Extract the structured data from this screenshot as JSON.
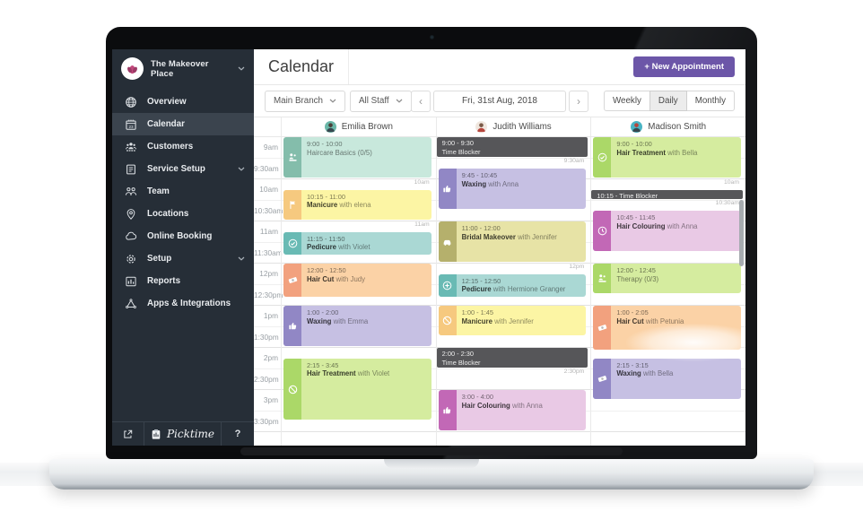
{
  "app": {
    "brand": {
      "name": "The Makeover Place"
    },
    "sidebar": {
      "items": [
        {
          "label": "Overview",
          "icon": "globe"
        },
        {
          "label": "Calendar",
          "icon": "calendar",
          "active": true
        },
        {
          "label": "Customers",
          "icon": "customers"
        },
        {
          "label": "Service Setup",
          "icon": "services",
          "chevron": true
        },
        {
          "label": "Team",
          "icon": "team"
        },
        {
          "label": "Locations",
          "icon": "location"
        },
        {
          "label": "Online Booking",
          "icon": "cloud"
        },
        {
          "label": "Setup",
          "icon": "gear",
          "chevron": true
        },
        {
          "label": "Reports",
          "icon": "reports"
        },
        {
          "label": "Apps & Integrations",
          "icon": "apps"
        }
      ],
      "footer": {
        "logo": "Picktime",
        "help": "?"
      }
    },
    "header": {
      "title": "Calendar",
      "new_appointment": "+ New Appointment"
    },
    "toolbar": {
      "branch": "Main Branch",
      "staff_filter": "All Staff",
      "prev": "‹",
      "date": "Fri, 31st Aug, 2018",
      "next": "›",
      "views": [
        "Weekly",
        "Daily",
        "Monthly"
      ],
      "active_view": "Daily"
    },
    "times": [
      "9am",
      "9:30am",
      "10am",
      "10:30am",
      "11am",
      "11:30am",
      "12pm",
      "12:30pm",
      "1pm",
      "1:30pm",
      "2pm",
      "2:30pm",
      "3pm",
      "3:30pm"
    ],
    "palette": {
      "mint": {
        "bg": "#c8e8dc",
        "bar": "#84bdab"
      },
      "yellow": {
        "bg": "#fcf5a4",
        "bar": "#f6c97f"
      },
      "teal": {
        "bg": "#aad8d4",
        "bar": "#69bab4"
      },
      "orange": {
        "bg": "#fbd2a6",
        "bar": "#f2a17e"
      },
      "purple": {
        "bg": "#c6c0e3",
        "bar": "#9187c5"
      },
      "green": {
        "bg": "#d5ec9f",
        "bar": "#abd868"
      },
      "olive": {
        "bg": "#e7e3a6",
        "bar": "#b5b06c"
      },
      "pink": {
        "bg": "#e9c9e5",
        "bar": "#c268b6"
      },
      "blocker": "#565659",
      "accent": "#6c56a8"
    },
    "staff": [
      {
        "name": "Emilia Brown",
        "avatar": {
          "bg": "#6ab7a8",
          "head": "#4b3f38",
          "body": "#37474f"
        },
        "events": [
          {
            "start": "9:00",
            "end": "10:00",
            "time": "9:00 - 10:00",
            "title": "Haircare Basics (0/5)",
            "with": "",
            "icon": "group",
            "color": "mint",
            "kind": "class",
            "corner": "10am"
          },
          {
            "start": "10:15",
            "end": "11:00",
            "time": "10:15 - 11:00",
            "title": "Manicure",
            "with": "elena",
            "icon": "flag",
            "color": "yellow",
            "kind": "appt",
            "corner": "11am"
          },
          {
            "start": "11:15",
            "end": "11:50",
            "time": "11:15 - 11:50",
            "title": "Pedicure",
            "with": "Violet",
            "icon": "check",
            "color": "teal",
            "kind": "appt"
          },
          {
            "start": "12:00",
            "end": "12:50",
            "time": "12:00 - 12:50",
            "title": "Hair Cut",
            "with": "Judy",
            "icon": "money",
            "color": "orange",
            "kind": "appt"
          },
          {
            "start": "1:00",
            "end": "2:00",
            "time": "1:00 - 2:00",
            "title": "Waxing",
            "with": "Emma",
            "icon": "thumb",
            "color": "purple",
            "kind": "appt"
          },
          {
            "start": "2:15",
            "end": "3:45",
            "time": "2:15 - 3:45",
            "title": "Hair Treatment",
            "with": "Violet",
            "icon": "ban",
            "color": "green",
            "kind": "appt"
          }
        ]
      },
      {
        "name": "Judith Williams",
        "avatar": {
          "bg": "#f0e7df",
          "head": "#7a5a48",
          "body": "#b6453c"
        },
        "events": [
          {
            "start": "9:00",
            "end": "9:30",
            "time": "9:00 - 9:30",
            "title": "Time Blocker",
            "kind": "blocker",
            "corner": "9:30am"
          },
          {
            "start": "9:45",
            "end": "10:45",
            "time": "9:45 - 10:45",
            "title": "Waxing",
            "with": "Anna",
            "icon": "thumb",
            "color": "purple",
            "kind": "appt"
          },
          {
            "start": "11:00",
            "end": "12:00",
            "time": "11:00 - 12:00",
            "title": "Bridal Makeover",
            "with": "Jennifer",
            "icon": "car",
            "color": "olive",
            "kind": "appt",
            "corner": "12pm"
          },
          {
            "start": "12:15",
            "end": "12:50",
            "time": "12:15 - 12:50",
            "title": "Pedicure",
            "with": "Hermione Granger",
            "icon": "plus",
            "color": "teal",
            "kind": "appt"
          },
          {
            "start": "1:00",
            "end": "1:45",
            "time": "1:00 - 1:45",
            "title": "Manicure",
            "with": "Jennifer",
            "icon": "ban",
            "color": "yellow",
            "kind": "appt"
          },
          {
            "start": "2:00",
            "end": "2:30",
            "time": "2:00 - 2:30",
            "title": "Time Blocker",
            "kind": "blocker",
            "corner": "2:30pm"
          },
          {
            "start": "3:00",
            "end": "4:00",
            "time": "3:00 - 4:00",
            "title": "Hair Colouring",
            "with": "Anna",
            "icon": "thumb",
            "color": "pink",
            "kind": "appt"
          }
        ]
      },
      {
        "name": "Madison Smith",
        "avatar": {
          "bg": "#49b4c4",
          "head": "#b6453c",
          "body": "#37474f"
        },
        "events": [
          {
            "start": "9:00",
            "end": "10:00",
            "time": "9:00 - 10:00",
            "title": "Hair Treatment",
            "with": "Bella",
            "icon": "check",
            "color": "green",
            "kind": "appt",
            "corner": "10am"
          },
          {
            "start": "10:15",
            "end": "10:30",
            "time": "10:15",
            "title": "Time Blocker",
            "kind": "blocker",
            "inline": true,
            "corner": "10:30am"
          },
          {
            "start": "10:45",
            "end": "11:45",
            "time": "10:45 - 11:45",
            "title": "Hair Colouring",
            "with": "Anna",
            "icon": "clock",
            "color": "pink",
            "kind": "appt"
          },
          {
            "start": "12:00",
            "end": "12:45",
            "time": "12:00 - 12:45",
            "title": "Therapy (0/3)",
            "with": "",
            "icon": "group",
            "color": "green",
            "kind": "class"
          },
          {
            "start": "1:00",
            "end": "2:05",
            "time": "1:00 - 2:05",
            "title": "Hair Cut",
            "with": "Petunia",
            "icon": "money",
            "color": "orange",
            "kind": "appt"
          },
          {
            "start": "2:15",
            "end": "3:15",
            "time": "2:15 - 3:15",
            "title": "Waxing",
            "with": "Bella",
            "icon": "money",
            "color": "purple",
            "kind": "appt"
          }
        ]
      }
    ]
  }
}
